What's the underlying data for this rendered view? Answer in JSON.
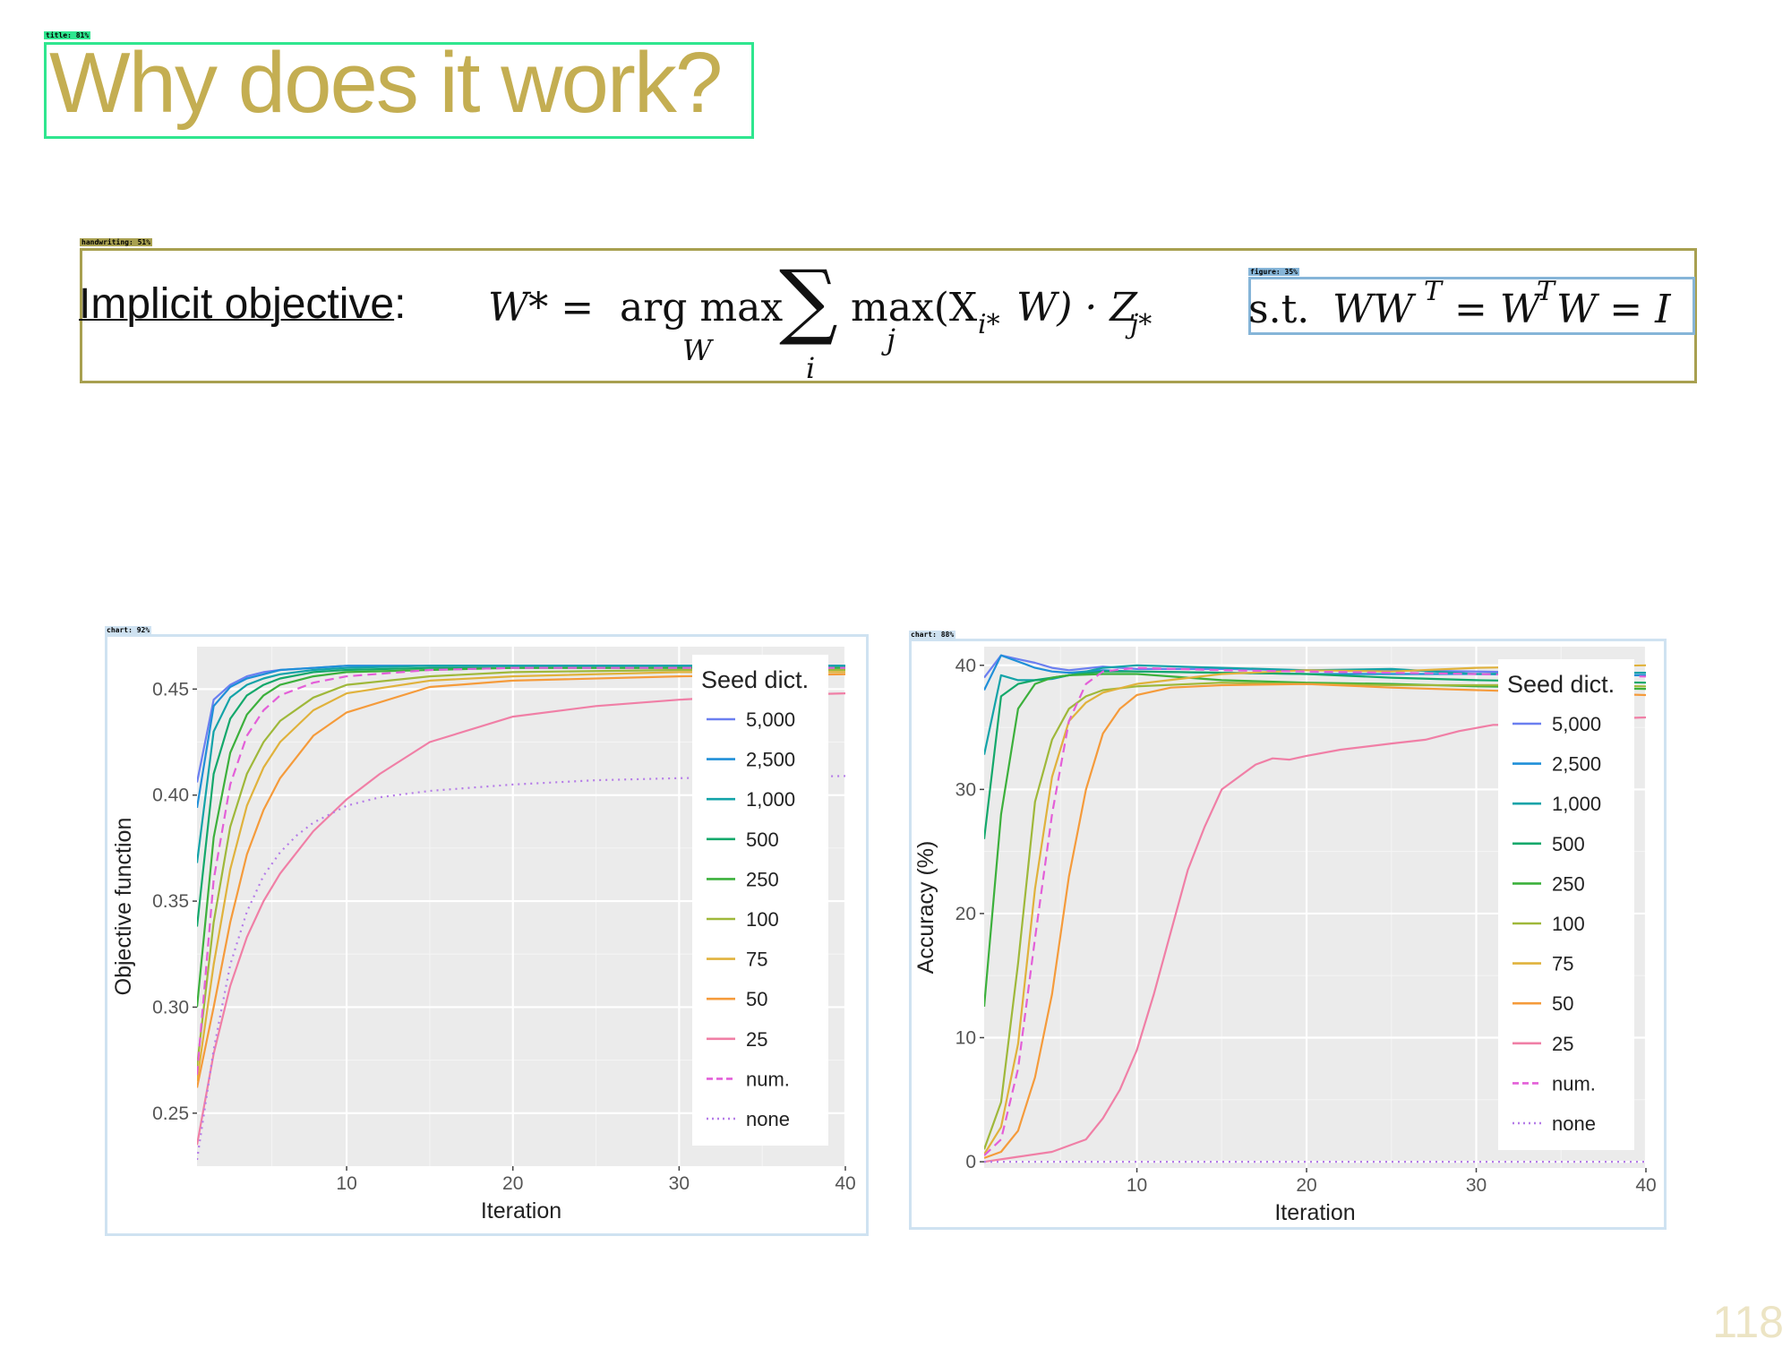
{
  "annotations": {
    "title_tag": "title: 81%",
    "handwriting_tag": "handwriting: 51%",
    "figure_tag": "figure: 35%",
    "chart_left_tag": "chart: 92%",
    "chart_right_tag": "chart: 88%"
  },
  "slide": {
    "title": "Why does it work?",
    "objective_label": "Implicit objective",
    "objective_colon": ":",
    "eq_lhs": "W* =",
    "eq_argmax": "arg max",
    "eq_argmax_sub": "W",
    "eq_sum": "∑",
    "eq_sum_sub": "i",
    "eq_max": "max(X",
    "eq_max_sub": "j",
    "eq_sub_i": "i*",
    "eq_w_close": "W) · Z",
    "eq_sub_j": "j*",
    "constraint_st": "s.t.",
    "constraint_eq": "WW",
    "constraint_sup1": "T",
    "constraint_mid": " = W",
    "constraint_sup2": "T",
    "constraint_end": "W = I",
    "page_number": "118"
  },
  "colors": {
    "title": "#c4ae52",
    "panel_bg": "#ebebeb",
    "grid_major": "#ffffff"
  },
  "chart_data": [
    {
      "type": "line",
      "xlabel": "Iteration",
      "ylabel": "Objective function",
      "xlim": [
        1,
        40
      ],
      "ylim": [
        0.225,
        0.47
      ],
      "xticks": [
        10,
        20,
        30,
        40
      ],
      "yticks": [
        0.25,
        0.3,
        0.35,
        0.4,
        0.45
      ],
      "ytick_labels": [
        "0.25",
        "0.30",
        "0.35",
        "0.40",
        "0.45"
      ],
      "grid": true,
      "legend_title": "Seed dict.",
      "legend_position": "right-inside",
      "series": [
        {
          "name": "5,000",
          "color": "#6b7ff0",
          "dash": "solid",
          "x": [
            1,
            2,
            3,
            4,
            5,
            6,
            8,
            10,
            15,
            20,
            30,
            40
          ],
          "values": [
            0.406,
            0.445,
            0.452,
            0.456,
            0.458,
            0.459,
            0.46,
            0.461,
            0.461,
            0.461,
            0.461,
            0.461
          ]
        },
        {
          "name": "2,500",
          "color": "#1f8fd8",
          "dash": "solid",
          "x": [
            1,
            2,
            3,
            4,
            5,
            6,
            8,
            10,
            15,
            20,
            30,
            40
          ],
          "values": [
            0.394,
            0.442,
            0.451,
            0.455,
            0.457,
            0.459,
            0.46,
            0.461,
            0.461,
            0.461,
            0.461,
            0.461
          ]
        },
        {
          "name": "1,000",
          "color": "#13a3a8",
          "dash": "solid",
          "x": [
            1,
            2,
            3,
            4,
            5,
            6,
            8,
            10,
            15,
            20,
            30,
            40
          ],
          "values": [
            0.368,
            0.43,
            0.446,
            0.452,
            0.455,
            0.457,
            0.459,
            0.46,
            0.461,
            0.461,
            0.461,
            0.461
          ]
        },
        {
          "name": "500",
          "color": "#13a86b",
          "dash": "solid",
          "x": [
            1,
            2,
            3,
            4,
            5,
            6,
            8,
            10,
            15,
            20,
            30,
            40
          ],
          "values": [
            0.338,
            0.41,
            0.436,
            0.447,
            0.452,
            0.455,
            0.458,
            0.459,
            0.46,
            0.46,
            0.46,
            0.46
          ]
        },
        {
          "name": "250",
          "color": "#3cb03c",
          "dash": "solid",
          "x": [
            1,
            2,
            3,
            4,
            5,
            6,
            8,
            10,
            15,
            20,
            30,
            40
          ],
          "values": [
            0.3,
            0.38,
            0.42,
            0.438,
            0.447,
            0.452,
            0.456,
            0.458,
            0.459,
            0.46,
            0.46,
            0.46
          ]
        },
        {
          "name": "100",
          "color": "#9fb83a",
          "dash": "solid",
          "x": [
            1,
            2,
            3,
            4,
            5,
            6,
            8,
            10,
            15,
            20,
            30,
            40
          ],
          "values": [
            0.272,
            0.34,
            0.385,
            0.41,
            0.425,
            0.435,
            0.446,
            0.452,
            0.456,
            0.458,
            0.459,
            0.459
          ]
        },
        {
          "name": "75",
          "color": "#e0b23c",
          "dash": "solid",
          "x": [
            1,
            2,
            3,
            4,
            5,
            6,
            8,
            10,
            15,
            20,
            30,
            40
          ],
          "values": [
            0.265,
            0.32,
            0.365,
            0.395,
            0.413,
            0.425,
            0.44,
            0.448,
            0.454,
            0.456,
            0.458,
            0.458
          ]
        },
        {
          "name": "50",
          "color": "#f59b3b",
          "dash": "solid",
          "x": [
            1,
            2,
            3,
            4,
            5,
            6,
            8,
            10,
            15,
            20,
            30,
            40
          ],
          "values": [
            0.262,
            0.3,
            0.34,
            0.372,
            0.393,
            0.408,
            0.428,
            0.439,
            0.451,
            0.454,
            0.456,
            0.457
          ]
        },
        {
          "name": "25",
          "color": "#f07fa6",
          "dash": "solid",
          "x": [
            1,
            2,
            3,
            4,
            5,
            6,
            8,
            10,
            12,
            15,
            20,
            25,
            30,
            35,
            40
          ],
          "values": [
            0.235,
            0.278,
            0.31,
            0.333,
            0.35,
            0.363,
            0.383,
            0.398,
            0.41,
            0.425,
            0.437,
            0.442,
            0.445,
            0.447,
            0.448
          ]
        },
        {
          "name": "num.",
          "color": "#e35fd8",
          "dash": "dashed",
          "x": [
            1,
            2,
            3,
            4,
            5,
            6,
            8,
            10,
            15,
            20,
            30,
            40
          ],
          "values": [
            0.268,
            0.36,
            0.405,
            0.428,
            0.44,
            0.447,
            0.453,
            0.456,
            0.459,
            0.46,
            0.46,
            0.46
          ]
        },
        {
          "name": "none",
          "color": "#b57ce8",
          "dash": "dotted",
          "x": [
            1,
            2,
            3,
            4,
            5,
            6,
            7,
            8,
            10,
            12,
            15,
            20,
            25,
            30,
            40
          ],
          "values": [
            0.228,
            0.28,
            0.32,
            0.345,
            0.362,
            0.373,
            0.381,
            0.387,
            0.395,
            0.399,
            0.402,
            0.405,
            0.407,
            0.408,
            0.409
          ]
        }
      ]
    },
    {
      "type": "line",
      "xlabel": "Iteration",
      "ylabel": "Accuracy (%)",
      "xlim": [
        1,
        40
      ],
      "ylim": [
        -0.5,
        41.5
      ],
      "xticks": [
        10,
        20,
        30,
        40
      ],
      "yticks": [
        0,
        10,
        20,
        30,
        40
      ],
      "ytick_labels": [
        "0",
        "10",
        "20",
        "30",
        "40"
      ],
      "grid": true,
      "legend_title": "Seed dict.",
      "legend_position": "right-inside",
      "series": [
        {
          "name": "5,000",
          "color": "#6b7ff0",
          "dash": "solid",
          "x": [
            1,
            2,
            3,
            4,
            5,
            6,
            8,
            10,
            15,
            20,
            25,
            30,
            35,
            40
          ],
          "values": [
            39.0,
            40.8,
            40.5,
            40.2,
            39.8,
            39.6,
            39.9,
            39.7,
            39.7,
            39.6,
            39.6,
            39.5,
            39.4,
            39.4
          ]
        },
        {
          "name": "2,500",
          "color": "#1f8fd8",
          "dash": "solid",
          "x": [
            1,
            2,
            3,
            4,
            5,
            6,
            8,
            10,
            15,
            20,
            25,
            30,
            35,
            40
          ],
          "values": [
            38.0,
            40.8,
            40.3,
            39.8,
            39.5,
            39.4,
            39.6,
            39.5,
            39.4,
            39.3,
            39.3,
            39.3,
            39.2,
            39.2
          ]
        },
        {
          "name": "1,000",
          "color": "#13a3a8",
          "dash": "solid",
          "x": [
            1,
            2,
            3,
            4,
            5,
            6,
            8,
            10,
            15,
            20,
            25,
            30,
            35,
            40
          ],
          "values": [
            32.8,
            39.2,
            38.8,
            38.8,
            38.9,
            39.2,
            39.8,
            40.0,
            39.8,
            39.6,
            39.7,
            39.3,
            39.4,
            39.4
          ]
        },
        {
          "name": "500",
          "color": "#13a86b",
          "dash": "solid",
          "x": [
            1,
            2,
            3,
            4,
            5,
            6,
            8,
            10,
            15,
            20,
            25,
            30,
            35,
            40
          ],
          "values": [
            26.0,
            37.5,
            38.5,
            38.8,
            39.0,
            39.2,
            39.5,
            39.5,
            39.4,
            39.3,
            39.0,
            38.8,
            38.7,
            38.6
          ]
        },
        {
          "name": "250",
          "color": "#3cb03c",
          "dash": "solid",
          "x": [
            1,
            2,
            3,
            4,
            5,
            6,
            8,
            10,
            15,
            20,
            25,
            30,
            35,
            40
          ],
          "values": [
            12.5,
            28.0,
            36.5,
            38.5,
            39.0,
            39.2,
            39.3,
            39.3,
            38.8,
            38.6,
            38.5,
            38.3,
            38.2,
            38.1
          ]
        },
        {
          "name": "100",
          "color": "#9fb83a",
          "dash": "solid",
          "x": [
            1,
            2,
            3,
            4,
            5,
            6,
            7,
            8,
            10,
            15,
            20,
            25,
            30,
            35,
            40
          ],
          "values": [
            1.0,
            4.8,
            16.0,
            29.0,
            34.0,
            36.5,
            37.5,
            38.0,
            38.3,
            38.6,
            38.5,
            38.4,
            38.4,
            38.4,
            38.3
          ]
        },
        {
          "name": "75",
          "color": "#e0b23c",
          "dash": "solid",
          "x": [
            1,
            2,
            3,
            4,
            5,
            6,
            7,
            8,
            10,
            15,
            20,
            25,
            30,
            35,
            40
          ],
          "values": [
            0.6,
            2.8,
            9.5,
            22.0,
            31.0,
            35.5,
            37.0,
            37.8,
            38.5,
            39.3,
            39.6,
            39.5,
            39.8,
            39.9,
            40.0
          ]
        },
        {
          "name": "50",
          "color": "#f59b3b",
          "dash": "solid",
          "x": [
            1,
            2,
            3,
            4,
            5,
            6,
            7,
            8,
            9,
            10,
            12,
            15,
            20,
            25,
            30,
            35,
            40
          ],
          "values": [
            0.3,
            0.8,
            2.5,
            6.8,
            13.5,
            23.0,
            30.0,
            34.5,
            36.5,
            37.6,
            38.2,
            38.4,
            38.5,
            38.2,
            38.0,
            37.8,
            37.6
          ]
        },
        {
          "name": "25",
          "color": "#f07fa6",
          "dash": "solid",
          "x": [
            1,
            3,
            5,
            7,
            8,
            9,
            10,
            11,
            12,
            13,
            14,
            15,
            16,
            17,
            18,
            19,
            20,
            22,
            25,
            27,
            29,
            31,
            33,
            35,
            40
          ],
          "values": [
            0.0,
            0.4,
            0.8,
            1.8,
            3.5,
            5.8,
            9.0,
            13.5,
            18.5,
            23.5,
            27.0,
            30.0,
            31.0,
            32.0,
            32.5,
            32.4,
            32.7,
            33.2,
            33.7,
            34.0,
            34.7,
            35.2,
            35.2,
            35.6,
            35.8
          ]
        },
        {
          "name": "num.",
          "color": "#e35fd8",
          "dash": "dashed",
          "x": [
            1,
            2,
            3,
            4,
            5,
            6,
            7,
            8,
            10,
            15,
            20,
            25,
            30,
            35,
            40
          ],
          "values": [
            0.5,
            1.8,
            7.5,
            18.0,
            28.0,
            35.5,
            38.5,
            39.5,
            39.8,
            39.6,
            39.5,
            39.4,
            39.3,
            39.2,
            39.1
          ]
        },
        {
          "name": "none",
          "color": "#b57ce8",
          "dash": "dotted",
          "x": [
            1,
            10,
            20,
            30,
            40
          ],
          "values": [
            0.0,
            0.0,
            0.0,
            0.0,
            0.0
          ]
        }
      ]
    }
  ]
}
